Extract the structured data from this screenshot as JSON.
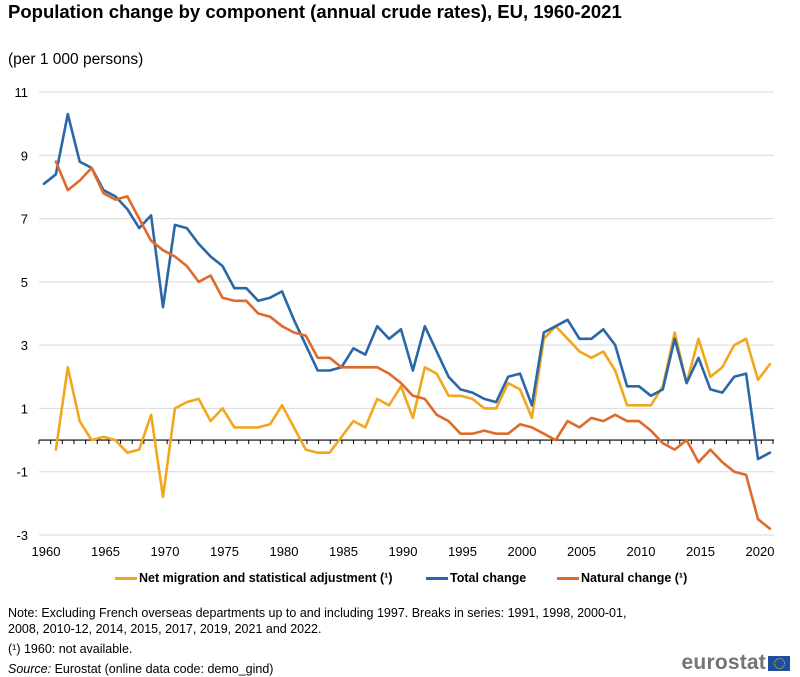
{
  "header": {
    "title": "Population change by component (annual crude rates), EU, 1960-2021",
    "subtitle": "(per 1 000 persons)"
  },
  "chart_data": {
    "type": "line",
    "title": "Population change by component (annual crude rates), EU, 1960-2021",
    "subtitle": "(per 1 000 persons)",
    "xlabel": "",
    "ylabel": "",
    "x": [
      1960,
      1961,
      1962,
      1963,
      1964,
      1965,
      1966,
      1967,
      1968,
      1969,
      1970,
      1971,
      1972,
      1973,
      1974,
      1975,
      1976,
      1977,
      1978,
      1979,
      1980,
      1981,
      1982,
      1983,
      1984,
      1985,
      1986,
      1987,
      1988,
      1989,
      1990,
      1991,
      1992,
      1993,
      1994,
      1995,
      1996,
      1997,
      1998,
      1999,
      2000,
      2001,
      2002,
      2003,
      2004,
      2005,
      2006,
      2007,
      2008,
      2009,
      2010,
      2011,
      2012,
      2013,
      2014,
      2015,
      2016,
      2017,
      2018,
      2019,
      2020,
      2021
    ],
    "xticks": [
      "1960",
      "1965",
      "1970",
      "1975",
      "1980",
      "1985",
      "1990",
      "1995",
      "2000",
      "2005",
      "2010",
      "2015",
      "2020"
    ],
    "xlim": [
      1960,
      2021
    ],
    "ylim": [
      -3,
      11
    ],
    "yticks": [
      "11",
      "9",
      "7",
      "5",
      "3",
      "1",
      "-1",
      "-3"
    ],
    "grid": true,
    "legend_position": "bottom",
    "series": [
      {
        "name": "Net migration and statistical adjustment (¹)",
        "color": "#f0a71e",
        "values": [
          null,
          -0.3,
          2.3,
          0.6,
          0.0,
          0.1,
          0.0,
          -0.4,
          -0.3,
          0.8,
          -1.8,
          1.0,
          1.2,
          1.3,
          0.6,
          1.0,
          0.4,
          0.4,
          0.4,
          0.5,
          1.1,
          0.4,
          -0.3,
          -0.4,
          -0.4,
          0.1,
          0.6,
          0.4,
          1.3,
          1.1,
          1.7,
          0.7,
          2.3,
          2.1,
          1.4,
          1.4,
          1.3,
          1.0,
          1.0,
          1.8,
          1.6,
          0.7,
          3.2,
          3.6,
          3.2,
          2.8,
          2.6,
          2.8,
          2.2,
          1.1,
          1.1,
          1.1,
          1.7,
          3.4,
          1.8,
          3.2,
          2.0,
          2.3,
          3.0,
          3.2,
          1.9,
          2.4
        ]
      },
      {
        "name": "Total change",
        "color": "#2a67a8",
        "values": [
          8.1,
          8.4,
          10.3,
          8.8,
          8.6,
          7.9,
          7.7,
          7.3,
          6.7,
          7.1,
          4.2,
          6.8,
          6.7,
          6.2,
          5.8,
          5.5,
          4.8,
          4.8,
          4.4,
          4.5,
          4.7,
          3.8,
          3.0,
          2.2,
          2.2,
          2.3,
          2.9,
          2.7,
          3.6,
          3.2,
          3.5,
          2.2,
          3.6,
          2.8,
          2.0,
          1.6,
          1.5,
          1.3,
          1.2,
          2.0,
          2.1,
          1.1,
          3.4,
          3.6,
          3.8,
          3.2,
          3.2,
          3.5,
          3.0,
          1.7,
          1.7,
          1.4,
          1.6,
          3.2,
          1.8,
          2.6,
          1.6,
          1.5,
          2.0,
          2.1,
          -0.6,
          -0.4
        ]
      },
      {
        "name": "Natural change (¹)",
        "color": "#e06a2b",
        "values": [
          null,
          8.8,
          7.9,
          8.2,
          8.6,
          7.8,
          7.6,
          7.7,
          7.0,
          6.3,
          6.0,
          5.8,
          5.5,
          5.0,
          5.2,
          4.5,
          4.4,
          4.4,
          4.0,
          3.9,
          3.6,
          3.4,
          3.3,
          2.6,
          2.6,
          2.3,
          2.3,
          2.3,
          2.3,
          2.1,
          1.8,
          1.4,
          1.3,
          0.8,
          0.6,
          0.2,
          0.2,
          0.3,
          0.2,
          0.2,
          0.5,
          0.4,
          0.2,
          0.0,
          0.6,
          0.4,
          0.7,
          0.6,
          0.8,
          0.6,
          0.6,
          0.3,
          -0.1,
          -0.3,
          0.0,
          -0.7,
          -0.3,
          -0.7,
          -1.0,
          -1.1,
          -2.5,
          -2.8
        ]
      }
    ]
  },
  "legend": [
    {
      "label": "Net migration and statistical adjustment (¹)",
      "color": "#f0a71e"
    },
    {
      "label": "Total change",
      "color": "#2a67a8"
    },
    {
      "label": "Natural change (¹)",
      "color": "#e06a2b"
    }
  ],
  "notes": {
    "note_line1": "Note: Excluding French overseas departments up to and including 1997. Breaks in series: 1991, 1998, 2000-01,",
    "note_line2": "2008, 2010-12, 2014, 2015, 2017, 2019, 2021 and 2022.",
    "footnote": "(¹) 1960: not available.",
    "source_label": "Source:",
    "source_text": " Eurostat (online data code: demo_gind)"
  },
  "logo": {
    "text": "eurostat"
  }
}
